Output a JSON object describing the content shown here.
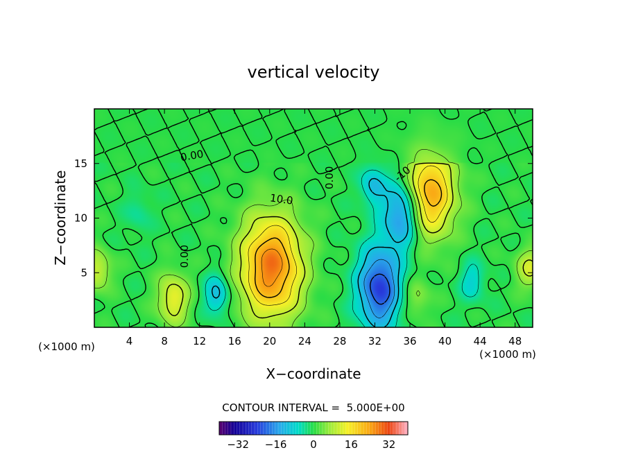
{
  "chart_data": {
    "type": "heatmap",
    "subtype": "contour",
    "title": "vertical velocity",
    "xlabel": "X−coordinate",
    "ylabel": "Z−coordinate",
    "x_unit": "(×1000 m)",
    "y_unit": "(×1000 m)",
    "xlim": [
      0,
      50
    ],
    "ylim": [
      0,
      20
    ],
    "x_ticks": [
      4,
      8,
      12,
      16,
      20,
      24,
      28,
      32,
      36,
      40,
      44,
      48
    ],
    "y_ticks": [
      5,
      10,
      15
    ],
    "contour_interval_text": "CONTOUR INTERVAL =  5.000E+00",
    "contour_labels": [
      {
        "text": "0.00",
        "x": 11.2,
        "y": 15.4,
        "rotate": -10
      },
      {
        "text": "10.0",
        "x": 21.3,
        "y": 11.4,
        "rotate": 8
      },
      {
        "text": "0.00",
        "x": 10.7,
        "y": 6.5,
        "rotate": -90
      },
      {
        "text": "0.00",
        "x": 27.2,
        "y": 13.7,
        "rotate": -90
      },
      {
        "text": "-10",
        "x": 35.4,
        "y": 13.8,
        "rotate": -40
      }
    ],
    "features": [
      {
        "kind": "updraft",
        "x": 20.2,
        "z": 5.5,
        "peak": 28
      },
      {
        "kind": "updraft",
        "x": 38.1,
        "z": 12.3,
        "peak": 24
      },
      {
        "kind": "updraft",
        "x": 9.0,
        "z": 2.6,
        "peak": 14
      },
      {
        "kind": "updraft",
        "x": 0.3,
        "z": 5.2,
        "peak": 11
      },
      {
        "kind": "updraft",
        "x": 49.7,
        "z": 5.4,
        "peak": 11
      },
      {
        "kind": "updraft",
        "x": 36.8,
        "z": 2.6,
        "peak": 6
      },
      {
        "kind": "downdraft",
        "x": 32.5,
        "z": 3.6,
        "peak": -24
      },
      {
        "kind": "downdraft",
        "x": 35.1,
        "z": 10.6,
        "peak": -21
      },
      {
        "kind": "downdraft",
        "x": 31.8,
        "z": 13.0,
        "peak": -11
      },
      {
        "kind": "downdraft",
        "x": 14.0,
        "z": 3.0,
        "peak": -12
      },
      {
        "kind": "downdraft",
        "x": 43.1,
        "z": 4.2,
        "peak": -8
      },
      {
        "kind": "downdraft",
        "x": 5.0,
        "z": 10.5,
        "peak": -4
      }
    ],
    "colorbar": {
      "range": [
        -40,
        40
      ],
      "ticks": [
        -32,
        -16,
        0,
        16,
        32
      ],
      "tick_labels": [
        "−32",
        "−16",
        "0",
        "16",
        "32"
      ]
    }
  }
}
